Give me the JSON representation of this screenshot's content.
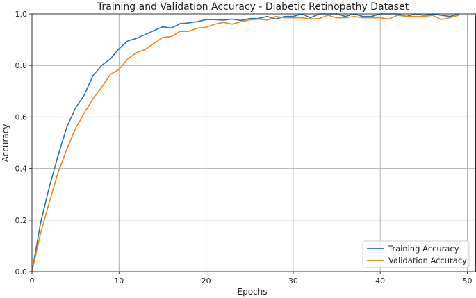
{
  "chart_data": {
    "type": "line",
    "title": "Training and Validation Accuracy - Diabetic Retinopathy Dataset",
    "xlabel": "Epochs",
    "ylabel": "Accuracy",
    "xlim": [
      0,
      51
    ],
    "ylim": [
      0,
      1.0
    ],
    "x_ticks": [
      0,
      10,
      20,
      30,
      40,
      50
    ],
    "y_ticks": [
      0.0,
      0.2,
      0.4,
      0.6,
      0.8,
      1.0
    ],
    "grid": true,
    "legend_position": "lower-right",
    "x": [
      0,
      1,
      2,
      3,
      4,
      5,
      6,
      7,
      8,
      9,
      10,
      11,
      12,
      13,
      14,
      15,
      16,
      17,
      18,
      19,
      20,
      21,
      22,
      23,
      24,
      25,
      26,
      27,
      28,
      29,
      30,
      31,
      32,
      33,
      34,
      35,
      36,
      37,
      38,
      39,
      40,
      41,
      42,
      43,
      44,
      45,
      46,
      47,
      48,
      49
    ],
    "series": [
      {
        "name": "Training Accuracy",
        "color": "#1f77b4",
        "values": [
          0.0,
          0.19,
          0.33,
          0.45,
          0.56,
          0.635,
          0.685,
          0.76,
          0.8,
          0.825,
          0.865,
          0.895,
          0.905,
          0.92,
          0.935,
          0.95,
          0.945,
          0.962,
          0.965,
          0.97,
          0.978,
          0.978,
          0.976,
          0.98,
          0.975,
          0.982,
          0.982,
          0.99,
          0.98,
          0.99,
          0.99,
          1.0,
          0.985,
          1.0,
          1.0,
          1.0,
          0.99,
          1.0,
          0.99,
          0.99,
          1.0,
          1.0,
          1.0,
          0.99,
          1.0,
          0.995,
          1.0,
          0.995,
          0.99,
          1.0
        ]
      },
      {
        "name": "Validation Accuracy",
        "color": "#ff7f0e",
        "values": [
          0.0,
          0.15,
          0.27,
          0.385,
          0.475,
          0.555,
          0.615,
          0.67,
          0.715,
          0.765,
          0.785,
          0.825,
          0.85,
          0.862,
          0.885,
          0.908,
          0.912,
          0.932,
          0.932,
          0.945,
          0.948,
          0.96,
          0.967,
          0.96,
          0.97,
          0.977,
          0.98,
          0.976,
          0.99,
          0.985,
          0.985,
          0.985,
          0.98,
          0.982,
          0.995,
          0.985,
          0.985,
          0.99,
          0.985,
          0.985,
          0.985,
          0.98,
          0.995,
          0.99,
          0.99,
          0.99,
          0.995,
          0.978,
          0.985,
          0.995
        ]
      }
    ]
  }
}
